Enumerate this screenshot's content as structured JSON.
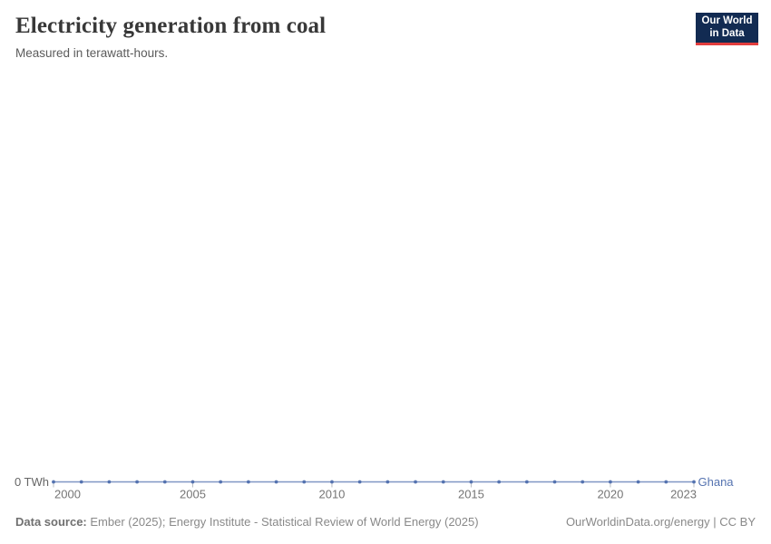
{
  "header": {
    "title": "Electricity generation from coal",
    "subtitle": "Measured in terawatt-hours."
  },
  "logo": {
    "line1": "Our World",
    "line2": "in Data",
    "bg_color": "#122B52",
    "accent_color": "#E23D3D"
  },
  "chart_data": {
    "type": "line",
    "title": "Electricity generation from coal",
    "subtitle": "Measured in terawatt-hours.",
    "x": [
      2000,
      2001,
      2002,
      2003,
      2004,
      2005,
      2006,
      2007,
      2008,
      2009,
      2010,
      2011,
      2012,
      2013,
      2014,
      2015,
      2016,
      2017,
      2018,
      2019,
      2020,
      2021,
      2022,
      2023
    ],
    "series": [
      {
        "name": "Ghana",
        "color": "#5573B0",
        "values": [
          0,
          0,
          0,
          0,
          0,
          0,
          0,
          0,
          0,
          0,
          0,
          0,
          0,
          0,
          0,
          0,
          0,
          0,
          0,
          0,
          0,
          0,
          0,
          0
        ]
      }
    ],
    "x_ticks": [
      2000,
      2005,
      2010,
      2015,
      2020,
      2023
    ],
    "y_tick_label": "0 TWh",
    "xlim": [
      2000,
      2023
    ],
    "ylim": [
      0,
      null
    ],
    "grid": false,
    "legend": "end-of-line-label",
    "axis_text_color": "#757575",
    "tick_color": "#b9bcc2"
  },
  "footer": {
    "source_label": "Data source:",
    "source_text": " Ember (2025); Energy Institute - Statistical Review of World Energy (2025)",
    "attribution": "OurWorldinData.org/energy | CC BY"
  }
}
